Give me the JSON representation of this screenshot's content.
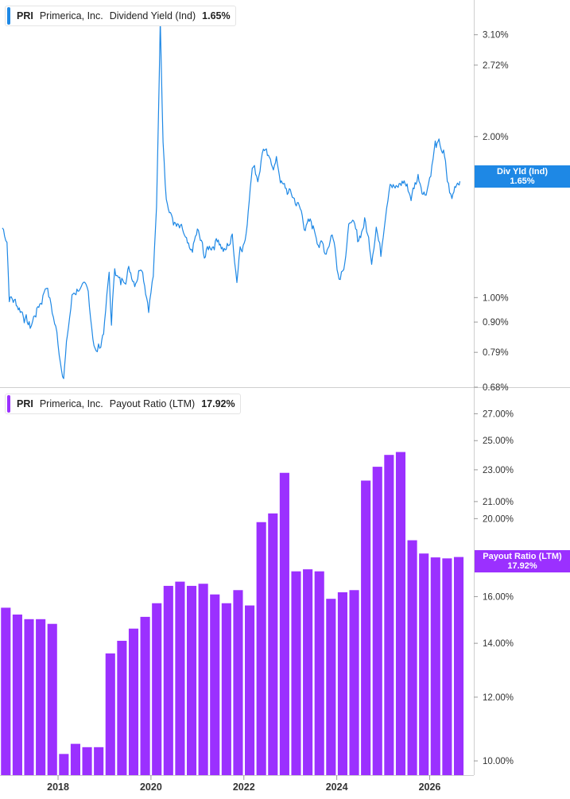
{
  "legends": [
    {
      "ticker": "PRI",
      "company": "Primerica, Inc.",
      "metric": "Dividend Yield (Ind)",
      "value": "1.65%",
      "color": "#1e88e5"
    },
    {
      "ticker": "PRI",
      "company": "Primerica, Inc.",
      "metric": "Payout Ratio (LTM)",
      "value": "17.92%",
      "color": "#9b30ff"
    }
  ],
  "tags": [
    {
      "line1": "Div Yld (Ind)",
      "line2": "1.65%",
      "color": "#1e88e5"
    },
    {
      "line1": "Payout Ratio (LTM)",
      "line2": "17.92%",
      "color": "#9b30ff"
    }
  ],
  "chart_data": [
    {
      "type": "line",
      "title": "",
      "series": [
        {
          "name": "Dividend Yield (Ind)",
          "color": "#1e88e5"
        }
      ],
      "x_ticks": [
        "2018",
        "2020",
        "2022",
        "2024",
        "2026"
      ],
      "y_scale": "log",
      "y_ticks": [
        "3.10%",
        "2.72%",
        "2.00%",
        "1.00%",
        "0.90%",
        "0.79%",
        "0.68%"
      ],
      "y_tick_values": [
        3.1,
        2.72,
        2.0,
        1.0,
        0.9,
        0.79,
        0.68
      ],
      "ylim": [
        0.68,
        3.6
      ],
      "anchors": [
        [
          2016.8,
          1.35
        ],
        [
          2016.9,
          1.3
        ],
        [
          2016.95,
          1.02
        ],
        [
          2017.1,
          0.98
        ],
        [
          2017.25,
          0.95
        ],
        [
          2017.4,
          0.88
        ],
        [
          2017.5,
          0.93
        ],
        [
          2017.65,
          1.0
        ],
        [
          2017.75,
          1.08
        ],
        [
          2017.85,
          0.97
        ],
        [
          2017.95,
          0.88
        ],
        [
          2018.05,
          0.77
        ],
        [
          2018.12,
          0.74
        ],
        [
          2018.2,
          0.85
        ],
        [
          2018.3,
          1.0
        ],
        [
          2018.45,
          1.06
        ],
        [
          2018.55,
          1.02
        ],
        [
          2018.65,
          0.98
        ],
        [
          2018.75,
          0.85
        ],
        [
          2018.82,
          0.79
        ],
        [
          2018.92,
          0.82
        ],
        [
          2019.0,
          0.9
        ],
        [
          2019.1,
          1.1
        ],
        [
          2019.15,
          0.88
        ],
        [
          2019.22,
          1.15
        ],
        [
          2019.35,
          1.05
        ],
        [
          2019.5,
          1.15
        ],
        [
          2019.65,
          1.1
        ],
        [
          2019.8,
          1.2
        ],
        [
          2019.95,
          1.0
        ],
        [
          2020.05,
          1.12
        ],
        [
          2020.12,
          1.45
        ],
        [
          2020.2,
          3.3
        ],
        [
          2020.26,
          2.05
        ],
        [
          2020.33,
          1.6
        ],
        [
          2020.42,
          1.45
        ],
        [
          2020.55,
          1.35
        ],
        [
          2020.7,
          1.28
        ],
        [
          2020.85,
          1.15
        ],
        [
          2021.0,
          1.3
        ],
        [
          2021.15,
          1.18
        ],
        [
          2021.3,
          1.25
        ],
        [
          2021.45,
          1.32
        ],
        [
          2021.6,
          1.22
        ],
        [
          2021.75,
          1.3
        ],
        [
          2021.85,
          1.1
        ],
        [
          2021.92,
          1.28
        ],
        [
          2022.05,
          1.32
        ],
        [
          2022.18,
          1.85
        ],
        [
          2022.3,
          1.7
        ],
        [
          2022.42,
          1.95
        ],
        [
          2022.55,
          1.75
        ],
        [
          2022.7,
          1.8
        ],
        [
          2022.85,
          1.6
        ],
        [
          2023.0,
          1.55
        ],
        [
          2023.15,
          1.5
        ],
        [
          2023.3,
          1.38
        ],
        [
          2023.45,
          1.35
        ],
        [
          2023.6,
          1.3
        ],
        [
          2023.75,
          1.22
        ],
        [
          2023.9,
          1.35
        ],
        [
          2024.05,
          1.12
        ],
        [
          2024.15,
          1.2
        ],
        [
          2024.3,
          1.42
        ],
        [
          2024.45,
          1.25
        ],
        [
          2024.6,
          1.4
        ],
        [
          2024.75,
          1.2
        ],
        [
          2024.85,
          1.42
        ],
        [
          2024.95,
          1.22
        ],
        [
          2025.05,
          1.5
        ],
        [
          2025.15,
          1.75
        ],
        [
          2025.3,
          1.6
        ],
        [
          2025.45,
          1.65
        ],
        [
          2025.6,
          1.55
        ],
        [
          2025.75,
          1.7
        ],
        [
          2025.9,
          1.6
        ],
        [
          2026.0,
          1.72
        ],
        [
          2026.12,
          1.95
        ],
        [
          2026.2,
          1.9
        ],
        [
          2026.3,
          1.85
        ],
        [
          2026.38,
          1.62
        ],
        [
          2026.48,
          1.5
        ],
        [
          2026.56,
          1.62
        ],
        [
          2026.62,
          1.68
        ],
        [
          2026.65,
          1.65
        ]
      ]
    },
    {
      "type": "bar",
      "title": "",
      "series": [
        {
          "name": "Payout Ratio (LTM)",
          "color": "#9b30ff"
        }
      ],
      "x_ticks": [
        "2018",
        "2020",
        "2022",
        "2024",
        "2026"
      ],
      "y_scale": "log",
      "y_ticks": [
        "27.00%",
        "25.00%",
        "23.00%",
        "21.00%",
        "20.00%",
        "16.00%",
        "14.00%",
        "12.00%",
        "10.00%"
      ],
      "y_tick_values": [
        27,
        25,
        23,
        21,
        20,
        16,
        14,
        12,
        10
      ],
      "ylim": [
        9.6,
        29.0
      ],
      "x": [
        2016.875,
        2017.125,
        2017.375,
        2017.625,
        2017.875,
        2018.125,
        2018.375,
        2018.625,
        2018.875,
        2019.125,
        2019.375,
        2019.625,
        2019.875,
        2020.125,
        2020.375,
        2020.625,
        2020.875,
        2021.125,
        2021.375,
        2021.625,
        2021.875,
        2022.125,
        2022.375,
        2022.625,
        2022.875,
        2023.125,
        2023.375,
        2023.625,
        2023.875,
        2024.125,
        2024.375,
        2024.625,
        2024.875,
        2025.125,
        2025.375,
        2025.625,
        2025.875,
        2026.125,
        2026.375,
        2026.625
      ],
      "values": [
        15.5,
        15.2,
        15.0,
        15.0,
        14.8,
        10.2,
        10.5,
        10.4,
        10.4,
        13.6,
        14.1,
        14.6,
        15.1,
        15.7,
        16.5,
        16.7,
        16.5,
        16.6,
        16.1,
        15.7,
        16.3,
        15.6,
        19.8,
        20.3,
        22.8,
        17.2,
        17.3,
        17.2,
        15.9,
        16.2,
        16.3,
        22.3,
        23.2,
        24.0,
        24.2,
        18.8,
        18.1,
        17.9,
        17.85,
        17.92
      ]
    }
  ]
}
